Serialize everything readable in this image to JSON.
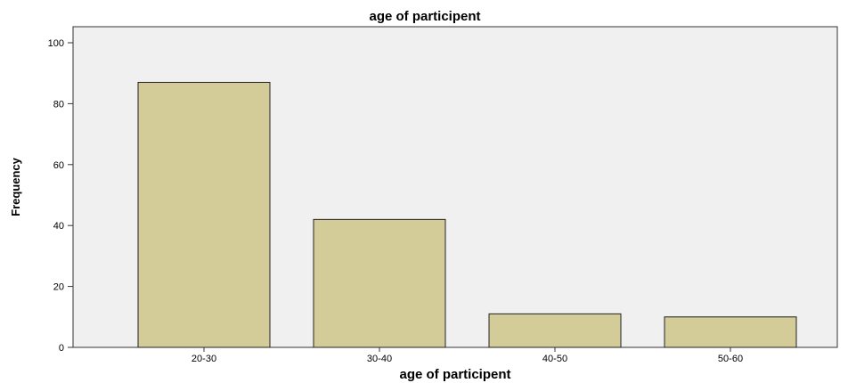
{
  "chart_data": {
    "type": "bar",
    "title": "age of participent",
    "xlabel": "age of participent",
    "ylabel": "Frequency",
    "categories": [
      "20-30",
      "30-40",
      "40-50",
      "50-60"
    ],
    "values": [
      87,
      42,
      11,
      10
    ],
    "ylim": [
      0,
      100
    ],
    "yticks": [
      0,
      20,
      40,
      60,
      80,
      100
    ],
    "grid": false,
    "colors": {
      "bar_fill": "#d3cc98",
      "bar_stroke": "#222222",
      "plot_background": "#f0f0f0"
    }
  }
}
